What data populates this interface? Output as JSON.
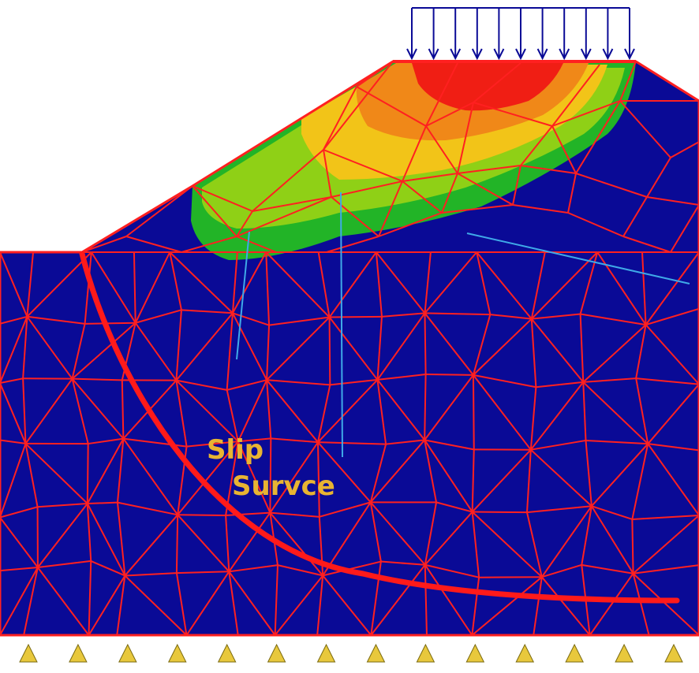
{
  "annotation": {
    "line1": "Slip",
    "line2": "Survce"
  },
  "colors": {
    "soil": "#0a0a96",
    "mesh": "#ff2020",
    "slip_surface": "#ff1a1a",
    "text": "#e8b432",
    "support": "#e8c83c",
    "crack": "#3fa9e8",
    "load_arrow": "#0a0a96",
    "contour": [
      "#22b427",
      "#8fd016",
      "#f2c418",
      "#f08818",
      "#f01e14"
    ]
  },
  "icons": {
    "support": "roller-support-triangle",
    "load": "distributed-load-arrows"
  },
  "counts": {
    "load_arrows": 11,
    "supports": 14
  }
}
